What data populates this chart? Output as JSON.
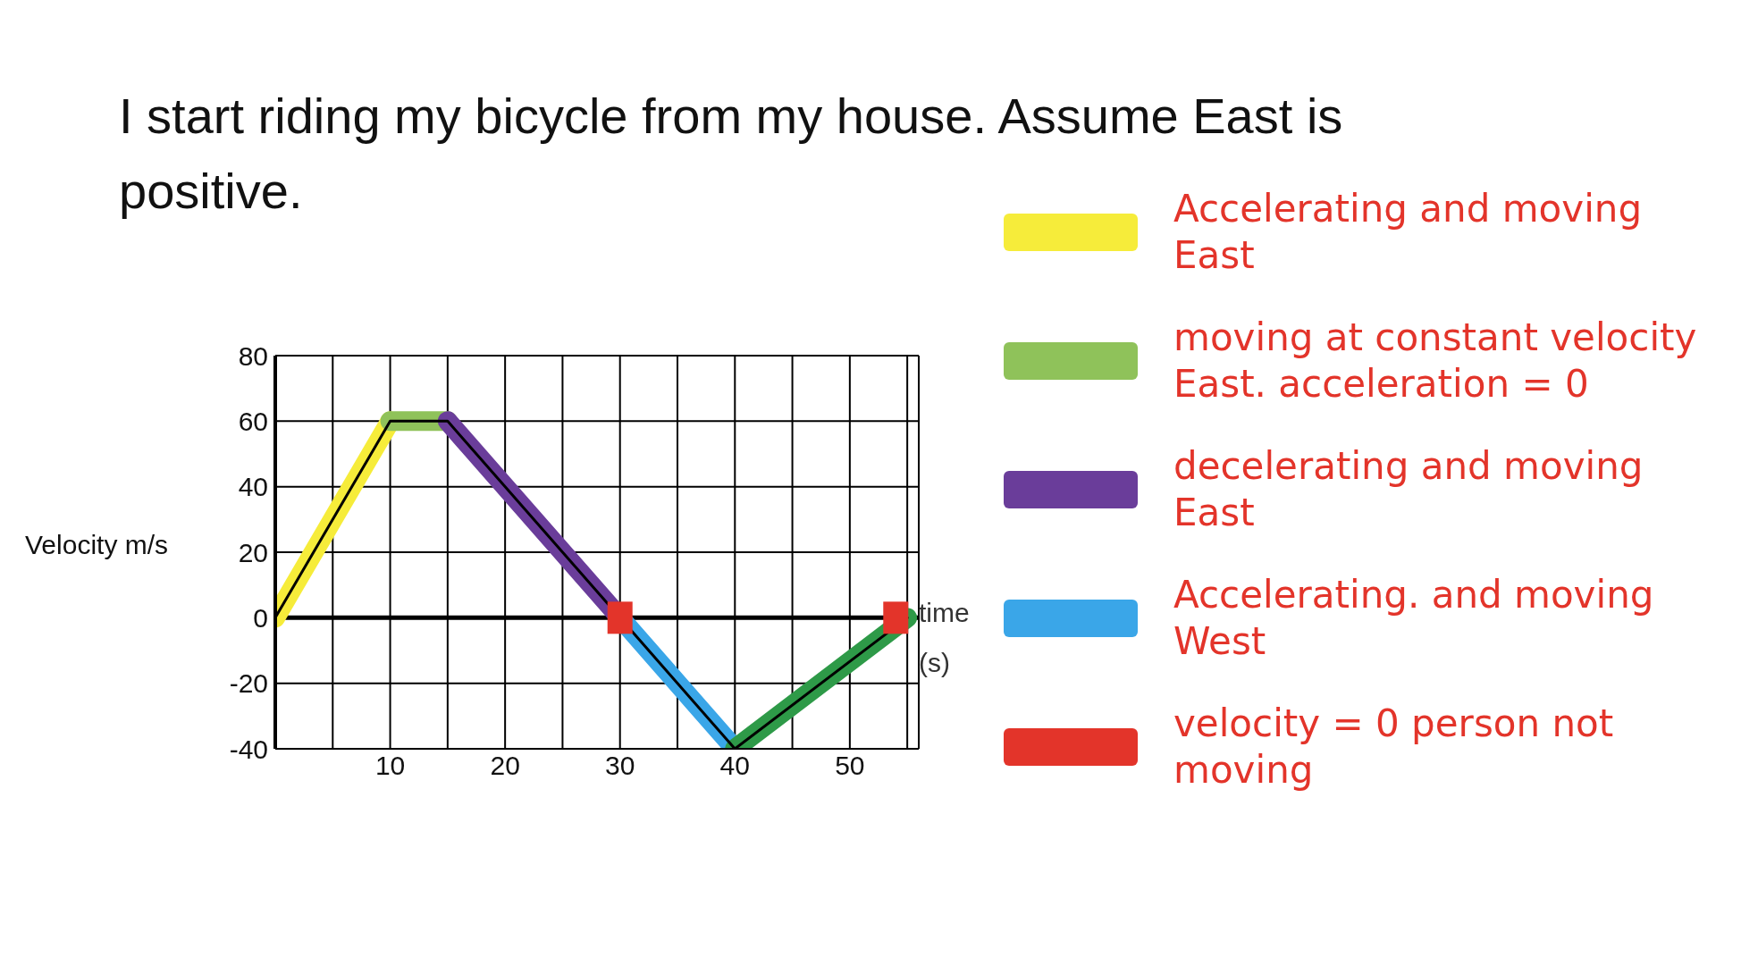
{
  "chart_data": {
    "type": "line",
    "title": "I start riding my bicycle from my house. Assume East is positive.",
    "xlabel": "time (s)",
    "ylabel": "Velocity m/s",
    "xlim": [
      0,
      56
    ],
    "xticks": [
      {
        "value": 0,
        "label": null
      },
      {
        "value": 5,
        "label": null
      },
      10,
      {
        "value": 15,
        "label": null
      },
      20,
      {
        "value": 25,
        "label": null
      },
      30,
      {
        "value": 35,
        "label": null
      },
      40,
      {
        "value": 45,
        "label": null
      },
      50,
      {
        "value": 55,
        "label": null
      }
    ],
    "ylim": [
      -40,
      80
    ],
    "yticks": [
      -40,
      -20,
      0,
      20,
      40,
      60,
      80
    ],
    "grid": true,
    "legend": "right",
    "ref_lines": [
      {
        "axis": "y",
        "value": 0,
        "color": "#000000"
      }
    ],
    "series": [
      {
        "name": "Accelerating and moving East",
        "color": "#f6ec3a",
        "x": [
          0,
          10
        ],
        "values": [
          0,
          60
        ]
      },
      {
        "name": "moving at constant velocity East. acceleration = 0",
        "color": "#8fc25a",
        "x": [
          10,
          15
        ],
        "values": [
          60,
          60
        ]
      },
      {
        "name": "decelerating and moving East",
        "color": "#6a3d9a",
        "x": [
          15,
          30
        ],
        "values": [
          60,
          0
        ]
      },
      {
        "name": "Accelerating. and moving West",
        "color": "#3aa6e8",
        "x": [
          30,
          40
        ],
        "values": [
          0,
          -40
        ]
      },
      {
        "color": "#2e9a48",
        "x": [
          40,
          55
        ],
        "values": [
          -40,
          0
        ]
      },
      {
        "name": "velocity = 0 person not moving",
        "type": "scatter",
        "marker": "square",
        "color": "#e3342a",
        "x": [
          30,
          54
        ],
        "values": [
          0,
          0
        ]
      },
      {
        "color": "#000000",
        "x": [
          0,
          10,
          15,
          30,
          40,
          55
        ],
        "values": [
          0,
          60,
          60,
          0,
          -40,
          0
        ]
      }
    ]
  }
}
